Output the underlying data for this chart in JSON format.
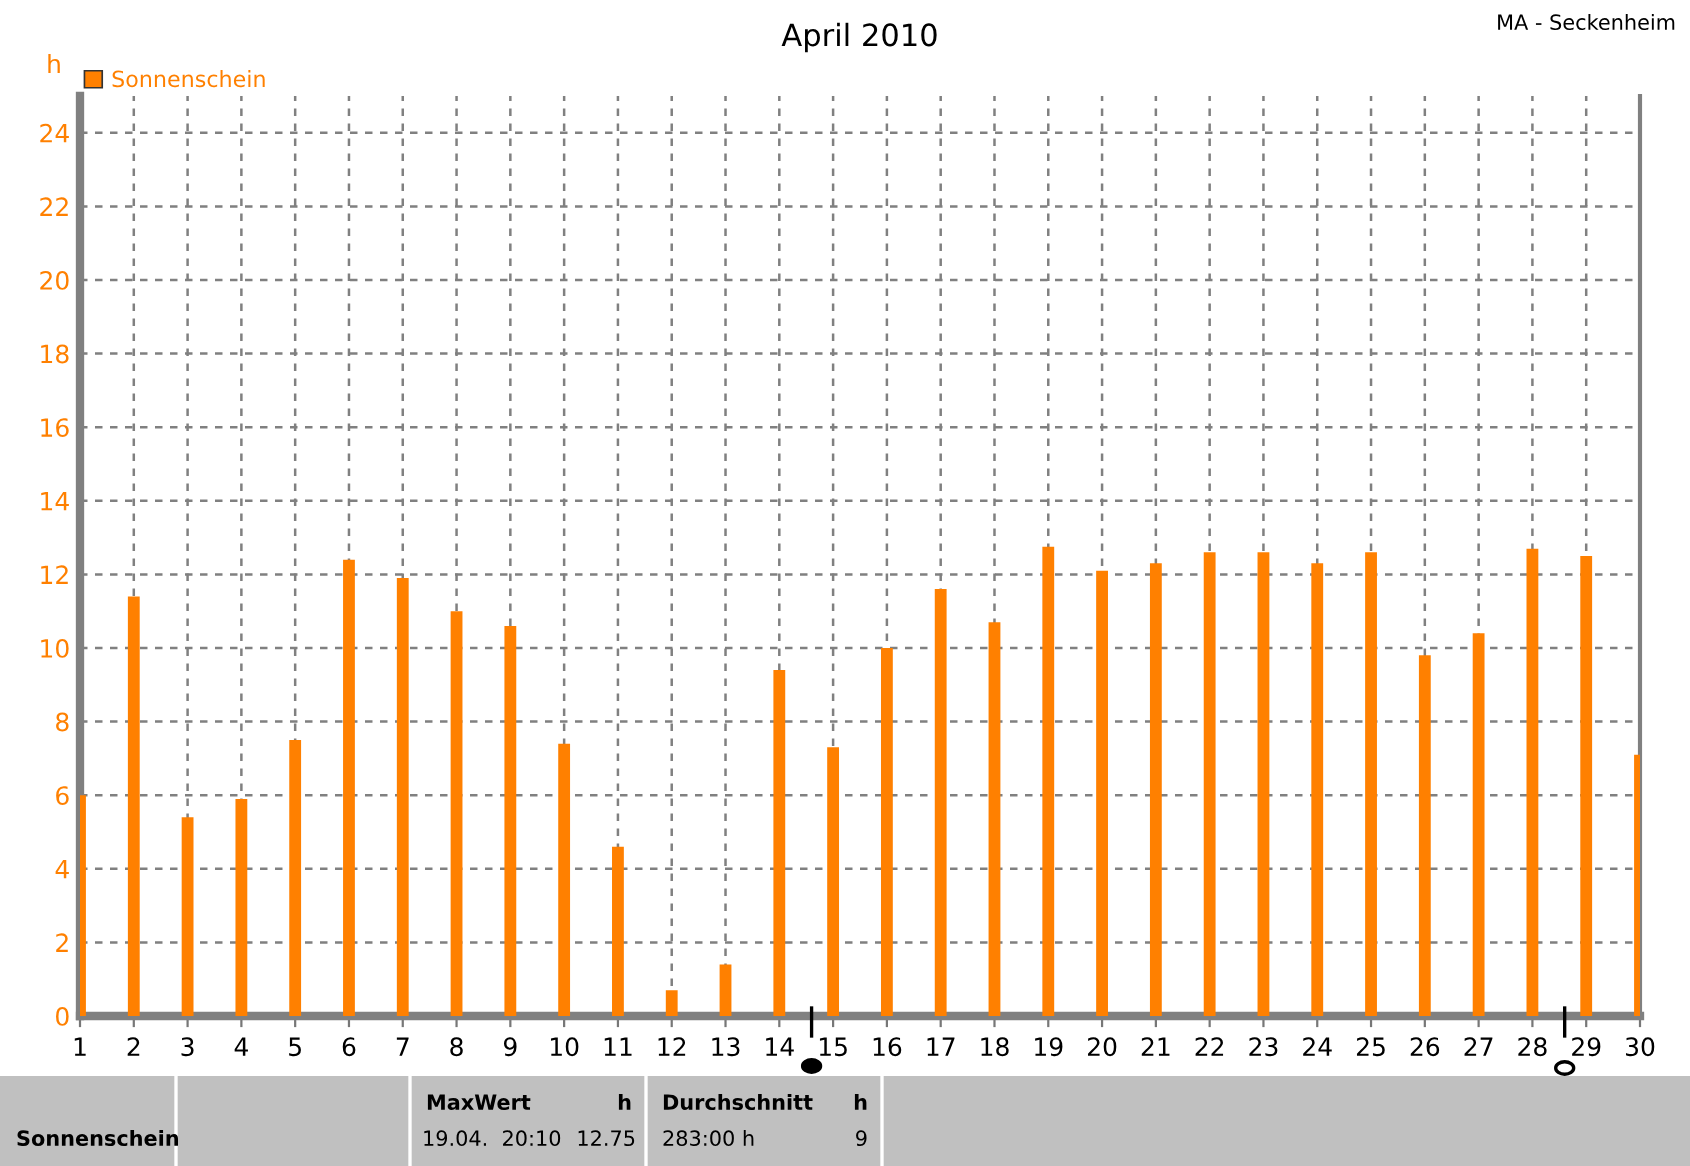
{
  "chart_data": {
    "type": "bar",
    "title": "April 2010",
    "ylabel": "h",
    "x": [
      1,
      2,
      3,
      4,
      5,
      6,
      7,
      8,
      9,
      10,
      11,
      12,
      13,
      14,
      15,
      16,
      17,
      18,
      19,
      20,
      21,
      22,
      23,
      24,
      25,
      26,
      27,
      28,
      29,
      30
    ],
    "series": [
      {
        "name": "Sonnenschein",
        "color": "#ff8000",
        "values": [
          6.0,
          11.4,
          5.4,
          5.9,
          7.5,
          12.4,
          11.9,
          11.0,
          10.6,
          7.4,
          4.6,
          0.7,
          1.4,
          9.4,
          7.3,
          10.0,
          11.6,
          10.7,
          12.75,
          12.1,
          12.3,
          12.6,
          12.6,
          12.3,
          12.6,
          9.8,
          10.4,
          12.7,
          12.5,
          7.1
        ]
      }
    ],
    "xlim": [
      1,
      30
    ],
    "xticks": [
      1,
      2,
      3,
      4,
      5,
      6,
      7,
      8,
      9,
      10,
      11,
      12,
      13,
      14,
      15,
      16,
      17,
      18,
      19,
      20,
      21,
      22,
      23,
      24,
      25,
      26,
      27,
      28,
      29,
      30
    ],
    "ylim": [
      0,
      25
    ],
    "yticks": [
      0,
      2,
      4,
      6,
      8,
      10,
      12,
      14,
      16,
      18,
      20,
      22,
      24
    ],
    "grid": true,
    "legend": "top left",
    "annotations": [
      "MA - Seckenheim",
      "Sonnenschein",
      "MaxWert",
      "h",
      "19.04.  20:10",
      "12.75",
      "Durchschnitt",
      "h",
      "283:00 h",
      "9"
    ]
  }
}
